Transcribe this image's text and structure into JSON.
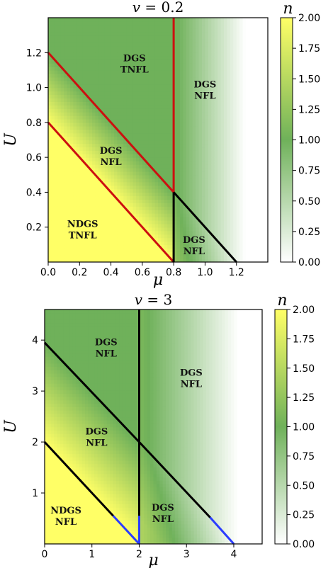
{
  "colors": {
    "cmap": [
      "#ffffff",
      "#6fb15a",
      "#ffff66"
    ],
    "red": "#cc1010",
    "black": "#000000",
    "blue": "#2b3cff"
  },
  "chart_data": [
    {
      "type": "heatmap",
      "title_prefix": "v = ",
      "title_value": "0.2",
      "xlabel": "μ",
      "ylabel": "U",
      "xlim": [
        0,
        1.4
      ],
      "ylim": [
        0,
        1.4
      ],
      "xticks": [
        "0.0",
        "0.2",
        "0.4",
        "0.6",
        "0.8",
        "1.0",
        "1.2"
      ],
      "xtick_values": [
        0,
        0.2,
        0.4,
        0.6,
        0.8,
        1.0,
        1.2
      ],
      "yticks": [
        "0.2",
        "0.4",
        "0.6",
        "0.8",
        "1.0",
        "1.2"
      ],
      "ytick_values": [
        0.2,
        0.4,
        0.6,
        0.8,
        1.0,
        1.2
      ],
      "colorbar_label": "n",
      "colorbar_ticks": [
        "0.00",
        "0.25",
        "0.50",
        "0.75",
        "1.00",
        "1.25",
        "1.50",
        "1.75",
        "2.00"
      ],
      "colorbar_range": [
        0,
        2
      ],
      "lines": [
        {
          "color": "red",
          "points": [
            [
              0,
              1.2
            ],
            [
              0.8,
              0.4
            ]
          ]
        },
        {
          "color": "red",
          "points": [
            [
              0,
              0.8
            ],
            [
              0.8,
              0
            ]
          ]
        },
        {
          "color": "red",
          "points": [
            [
              0.8,
              0.4
            ],
            [
              0.8,
              1.4
            ]
          ]
        },
        {
          "color": "black",
          "points": [
            [
              0.8,
              0
            ],
            [
              0.8,
              0.4
            ]
          ]
        },
        {
          "color": "black",
          "points": [
            [
              0.8,
              0.4
            ],
            [
              1.2,
              0
            ]
          ]
        }
      ],
      "regions": [
        {
          "line1": "DGS",
          "line2": "TNFL",
          "at": [
            0.55,
            1.15
          ]
        },
        {
          "line1": "DGS",
          "line2": "NFL",
          "at": [
            1.0,
            1.0
          ]
        },
        {
          "line1": "DGS",
          "line2": "NFL",
          "at": [
            0.4,
            0.62
          ]
        },
        {
          "line1": "NDGS",
          "line2": "TNFL",
          "at": [
            0.22,
            0.2
          ]
        },
        {
          "line1": "DGS",
          "line2": "NFL",
          "at": [
            0.93,
            0.11
          ]
        }
      ]
    },
    {
      "type": "heatmap",
      "title_prefix": "v = ",
      "title_value": "3",
      "xlabel": "μ",
      "ylabel": "U",
      "xlim": [
        0,
        4.6
      ],
      "ylim": [
        0,
        4.6
      ],
      "xticks": [
        "0",
        "1",
        "2",
        "3",
        "4"
      ],
      "xtick_values": [
        0,
        1,
        2,
        3,
        4
      ],
      "yticks": [
        "1",
        "2",
        "3",
        "4"
      ],
      "ytick_values": [
        1,
        2,
        3,
        4
      ],
      "colorbar_label": "n",
      "colorbar_ticks": [
        "0.00",
        "0.25",
        "0.50",
        "0.75",
        "1.00",
        "1.25",
        "1.50",
        "1.75",
        "2.00"
      ],
      "colorbar_range": [
        0,
        2
      ],
      "lines": [
        {
          "color": "black",
          "points": [
            [
              0,
              3.95
            ],
            [
              2,
              2
            ]
          ]
        },
        {
          "color": "black",
          "points": [
            [
              2,
              2
            ],
            [
              3.5,
              0.52
            ]
          ]
        },
        {
          "color": "blue",
          "points": [
            [
              3.5,
              0.52
            ],
            [
              4.0,
              0
            ]
          ]
        },
        {
          "color": "black",
          "points": [
            [
              0,
              2
            ],
            [
              1.45,
              0.55
            ]
          ]
        },
        {
          "color": "blue",
          "points": [
            [
              1.45,
              0.55
            ],
            [
              2,
              0
            ]
          ]
        },
        {
          "color": "black",
          "points": [
            [
              2,
              0.55
            ],
            [
              2,
              4.6
            ]
          ]
        },
        {
          "color": "blue",
          "points": [
            [
              2,
              0
            ],
            [
              2,
              0.55
            ]
          ]
        }
      ],
      "regions": [
        {
          "line1": "DGS",
          "line2": "NFL",
          "at": [
            1.3,
            3.9
          ]
        },
        {
          "line1": "DGS",
          "line2": "NFL",
          "at": [
            3.1,
            3.3
          ]
        },
        {
          "line1": "DGS",
          "line2": "NFL",
          "at": [
            1.1,
            2.15
          ]
        },
        {
          "line1": "NDGS",
          "line2": "NFL",
          "at": [
            0.45,
            0.6
          ]
        },
        {
          "line1": "DGS",
          "line2": "NFL",
          "at": [
            2.5,
            0.65
          ]
        }
      ]
    }
  ]
}
